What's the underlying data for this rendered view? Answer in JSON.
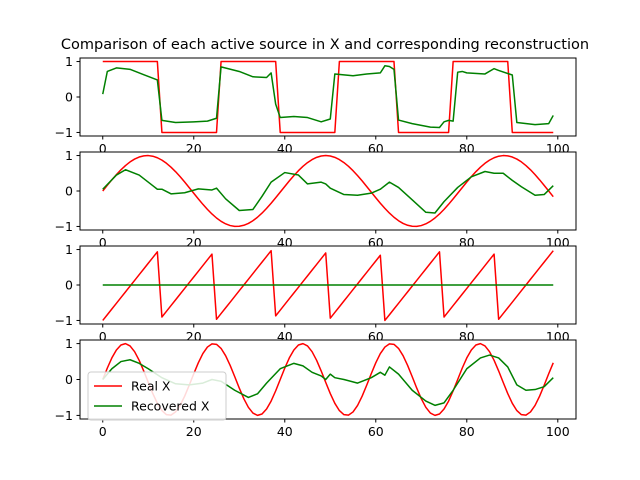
{
  "chart_data": {
    "type": "line",
    "title": "Comparison of each active source in X and corresponding reconstruction",
    "legend": {
      "placement": "lower-left",
      "panel": 4,
      "entries": [
        "Real X",
        "Recovered X"
      ]
    },
    "colors": {
      "real": "#ff0000",
      "recovered": "#008000"
    },
    "grid": false,
    "xlim": [
      -5,
      104
    ],
    "xticks": [
      0,
      20,
      40,
      60,
      80,
      100
    ],
    "xtick_labels": [
      "0",
      "20",
      "40",
      "60",
      "80",
      "100"
    ],
    "panels": [
      {
        "ylim": [
          -1.1,
          1.1
        ],
        "yticks": [
          -1,
          0,
          1
        ],
        "ytick_labels": [
          "−1",
          "0",
          "1"
        ],
        "real_x": {
          "kind": "square",
          "period": 25.6,
          "phase": 0,
          "amplitude": 1,
          "n": 100
        },
        "recovered_x": {
          "x": [
            0,
            1,
            3,
            6,
            9,
            12,
            13,
            16,
            20,
            23,
            25,
            26,
            30,
            33,
            36,
            37,
            38,
            39,
            42,
            45,
            48,
            50,
            51,
            55,
            58,
            61,
            62,
            63,
            64,
            65,
            68,
            72,
            74,
            75,
            76,
            77,
            78,
            79,
            80,
            84,
            86,
            87,
            90,
            91,
            95,
            98,
            99
          ],
          "y": [
            0.08,
            0.72,
            0.82,
            0.78,
            0.63,
            0.48,
            -0.66,
            -0.72,
            -0.7,
            -0.68,
            -0.6,
            0.85,
            0.72,
            0.57,
            0.55,
            0.68,
            -0.2,
            -0.58,
            -0.55,
            -0.58,
            -0.7,
            -0.62,
            0.65,
            0.6,
            0.65,
            0.68,
            0.88,
            0.86,
            0.78,
            -0.65,
            -0.75,
            -0.85,
            -0.86,
            -0.7,
            -0.66,
            -0.68,
            0.7,
            0.72,
            0.68,
            0.65,
            0.8,
            0.75,
            0.62,
            -0.72,
            -0.78,
            -0.75,
            -0.52
          ]
        }
      },
      {
        "ylim": [
          -1.1,
          1.1
        ],
        "yticks": [
          -1,
          0,
          1
        ],
        "ytick_labels": [
          "−1",
          "0",
          "1"
        ],
        "real_x": {
          "kind": "sine",
          "period": 39.2,
          "phase": 0,
          "amplitude": 1,
          "n": 100
        },
        "recovered_x": {
          "x": [
            0,
            3,
            5,
            8,
            11,
            12,
            13,
            15,
            18,
            21,
            24,
            25,
            27,
            30,
            33,
            35,
            37,
            40,
            43,
            45,
            48,
            49,
            50,
            53,
            56,
            59,
            61,
            63,
            65,
            68,
            71,
            73,
            75,
            78,
            81,
            84,
            86,
            88,
            90,
            92,
            95,
            97,
            99
          ],
          "y": [
            0.05,
            0.45,
            0.6,
            0.45,
            0.15,
            0.05,
            0.05,
            -0.08,
            -0.05,
            0.06,
            0.03,
            0.08,
            -0.22,
            -0.55,
            -0.52,
            -0.15,
            0.25,
            0.52,
            0.45,
            0.2,
            0.25,
            0.2,
            0.08,
            -0.1,
            -0.12,
            -0.06,
            0.05,
            0.25,
            0.1,
            -0.25,
            -0.6,
            -0.62,
            -0.3,
            0.1,
            0.4,
            0.55,
            0.5,
            0.5,
            0.3,
            0.12,
            -0.12,
            -0.1,
            0.15
          ]
        }
      },
      {
        "ylim": [
          -1.1,
          1.1
        ],
        "yticks": [
          -1,
          0,
          1
        ],
        "ytick_labels": [
          "−1",
          "0",
          "1"
        ],
        "real_x": {
          "kind": "sawtooth",
          "period": 12.4,
          "phase": 0,
          "amplitude": 1,
          "n": 100
        },
        "recovered_x": {
          "x": [
            0,
            99
          ],
          "y": [
            0,
            0
          ]
        }
      },
      {
        "ylim": [
          -1.1,
          1.1
        ],
        "yticks": [
          -1,
          0,
          1
        ],
        "ytick_labels": [
          "−1",
          "0",
          "1"
        ],
        "real_x": {
          "kind": "sine",
          "period": 19.5,
          "phase": 0,
          "amplitude": 1,
          "n": 100
        },
        "recovered_x": {
          "x": [
            0,
            2,
            4,
            6,
            8,
            10,
            13,
            16,
            19,
            22,
            24,
            26,
            29,
            32,
            34,
            36,
            39,
            42,
            44,
            46,
            48,
            49,
            50,
            51,
            53,
            56,
            59,
            61,
            62,
            63,
            65,
            68,
            71,
            73,
            75,
            77,
            80,
            83,
            85,
            87,
            89,
            91,
            93,
            95,
            97,
            99
          ],
          "y": [
            0.0,
            0.3,
            0.5,
            0.55,
            0.45,
            0.3,
            0.05,
            -0.12,
            -0.15,
            -0.1,
            0.0,
            -0.05,
            -0.3,
            -0.5,
            -0.4,
            -0.1,
            0.3,
            0.45,
            0.38,
            0.2,
            0.1,
            0.0,
            0.15,
            0.05,
            0.0,
            -0.1,
            0.05,
            0.2,
            0.12,
            0.35,
            0.15,
            -0.3,
            -0.6,
            -0.72,
            -0.65,
            -0.3,
            0.3,
            0.6,
            0.68,
            0.6,
            0.35,
            -0.15,
            -0.3,
            -0.28,
            -0.2,
            0.05
          ]
        }
      }
    ]
  }
}
